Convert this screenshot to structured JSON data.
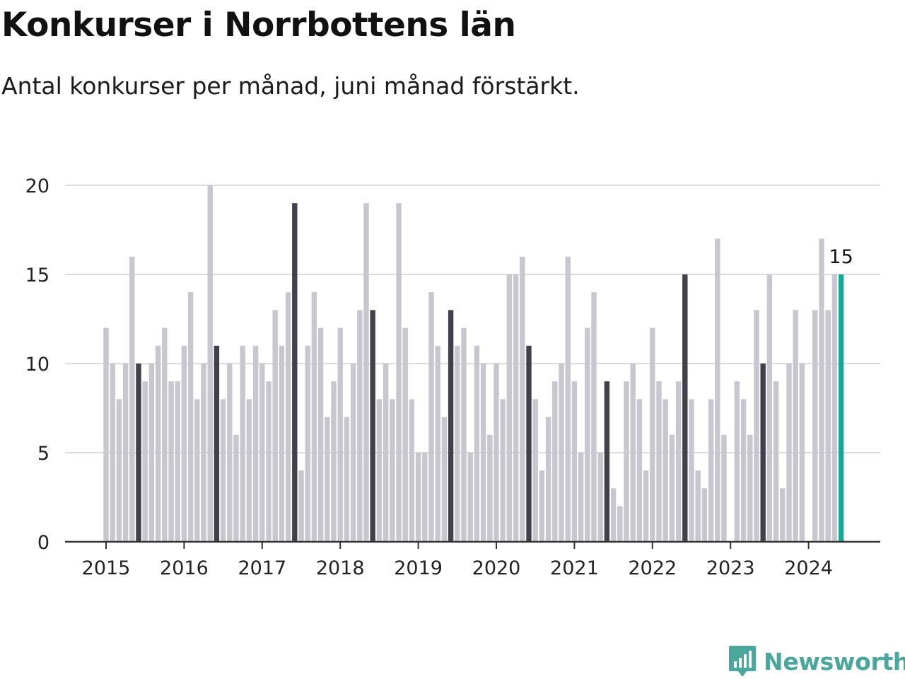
{
  "title": "Konkurser i Norrbottens län",
  "subtitle": "Antal konkurser per månad, juni månad förstärkt.",
  "brand": {
    "name": "Newsworthy",
    "icon": "newsworthy-logo-icon",
    "color": "#4aa79c"
  },
  "colors": {
    "bar": "#c8c7cf",
    "june": "#41404b",
    "latest": "#1ba595",
    "grid": "#dddddd",
    "axis": "#333333"
  },
  "chart_data": {
    "type": "bar",
    "x_start": "2015-01",
    "interval": "month",
    "ylim": [
      0,
      20
    ],
    "yticks": [
      0,
      5,
      10,
      15,
      20
    ],
    "xticks": [
      "2015",
      "2016",
      "2017",
      "2018",
      "2019",
      "2020",
      "2021",
      "2022",
      "2023",
      "2024"
    ],
    "grid": true,
    "highlight": "June bars emphasized; latest month highlighted",
    "values": [
      12,
      10,
      8,
      10,
      16,
      10,
      9,
      10,
      11,
      12,
      9,
      9,
      11,
      14,
      8,
      10,
      20,
      11,
      8,
      10,
      6,
      11,
      8,
      11,
      10,
      9,
      13,
      11,
      14,
      19,
      4,
      11,
      14,
      12,
      7,
      9,
      12,
      7,
      10,
      13,
      19,
      13,
      8,
      10,
      8,
      19,
      12,
      8,
      5,
      5,
      14,
      11,
      7,
      13,
      11,
      12,
      5,
      11,
      10,
      6,
      10,
      8,
      15,
      15,
      16,
      11,
      8,
      4,
      7,
      9,
      10,
      16,
      9,
      5,
      12,
      14,
      5,
      9,
      3,
      2,
      9,
      10,
      8,
      4,
      12,
      9,
      8,
      6,
      9,
      15,
      8,
      4,
      3,
      8,
      17,
      6,
      0,
      9,
      8,
      6,
      13,
      10,
      15,
      9,
      3,
      10,
      13,
      10,
      0,
      13,
      17,
      13,
      15,
      15
    ],
    "latest_label": "15"
  }
}
